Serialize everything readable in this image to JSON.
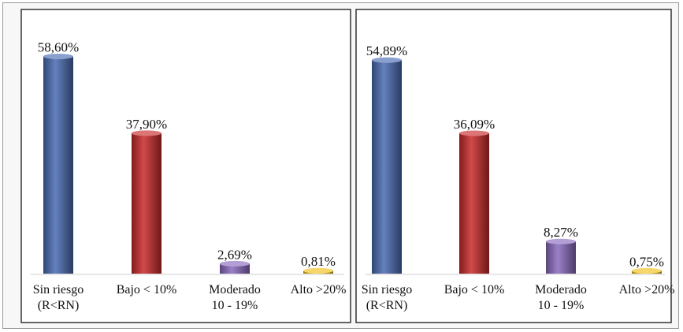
{
  "chart_data": [
    {
      "type": "bar",
      "categories": [
        [
          "Sin riesgo",
          "(R<RN)"
        ],
        [
          "Bajo < 10%"
        ],
        [
          "Moderado",
          "10 - 19%"
        ],
        [
          "Alto >20%"
        ]
      ],
      "values": [
        58.6,
        37.9,
        2.69,
        0.81
      ],
      "value_labels": [
        "58,60%",
        "37,90%",
        "2,69%",
        "0,81%"
      ],
      "colors": [
        "#4a6bb3",
        "#c92a2a",
        "#8a6bbf",
        "#f2c21b"
      ],
      "ylim": [
        0,
        60
      ],
      "grid": false,
      "title": "",
      "xlabel": "",
      "ylabel": ""
    },
    {
      "type": "bar",
      "categories": [
        [
          "Sin riesgo",
          "(R<RN)"
        ],
        [
          "Bajo < 10%"
        ],
        [
          "Moderado",
          "10 - 19%"
        ],
        [
          "Alto >20%"
        ]
      ],
      "values": [
        54.89,
        36.09,
        8.27,
        0.75
      ],
      "value_labels": [
        "54,89%",
        "36,09%",
        "8,27%",
        "0,75%"
      ],
      "colors": [
        "#4a6bb3",
        "#c92a2a",
        "#8a6bbf",
        "#f2c21b"
      ],
      "ylim": [
        0,
        60
      ],
      "grid": false,
      "title": "",
      "xlabel": "",
      "ylabel": ""
    }
  ]
}
